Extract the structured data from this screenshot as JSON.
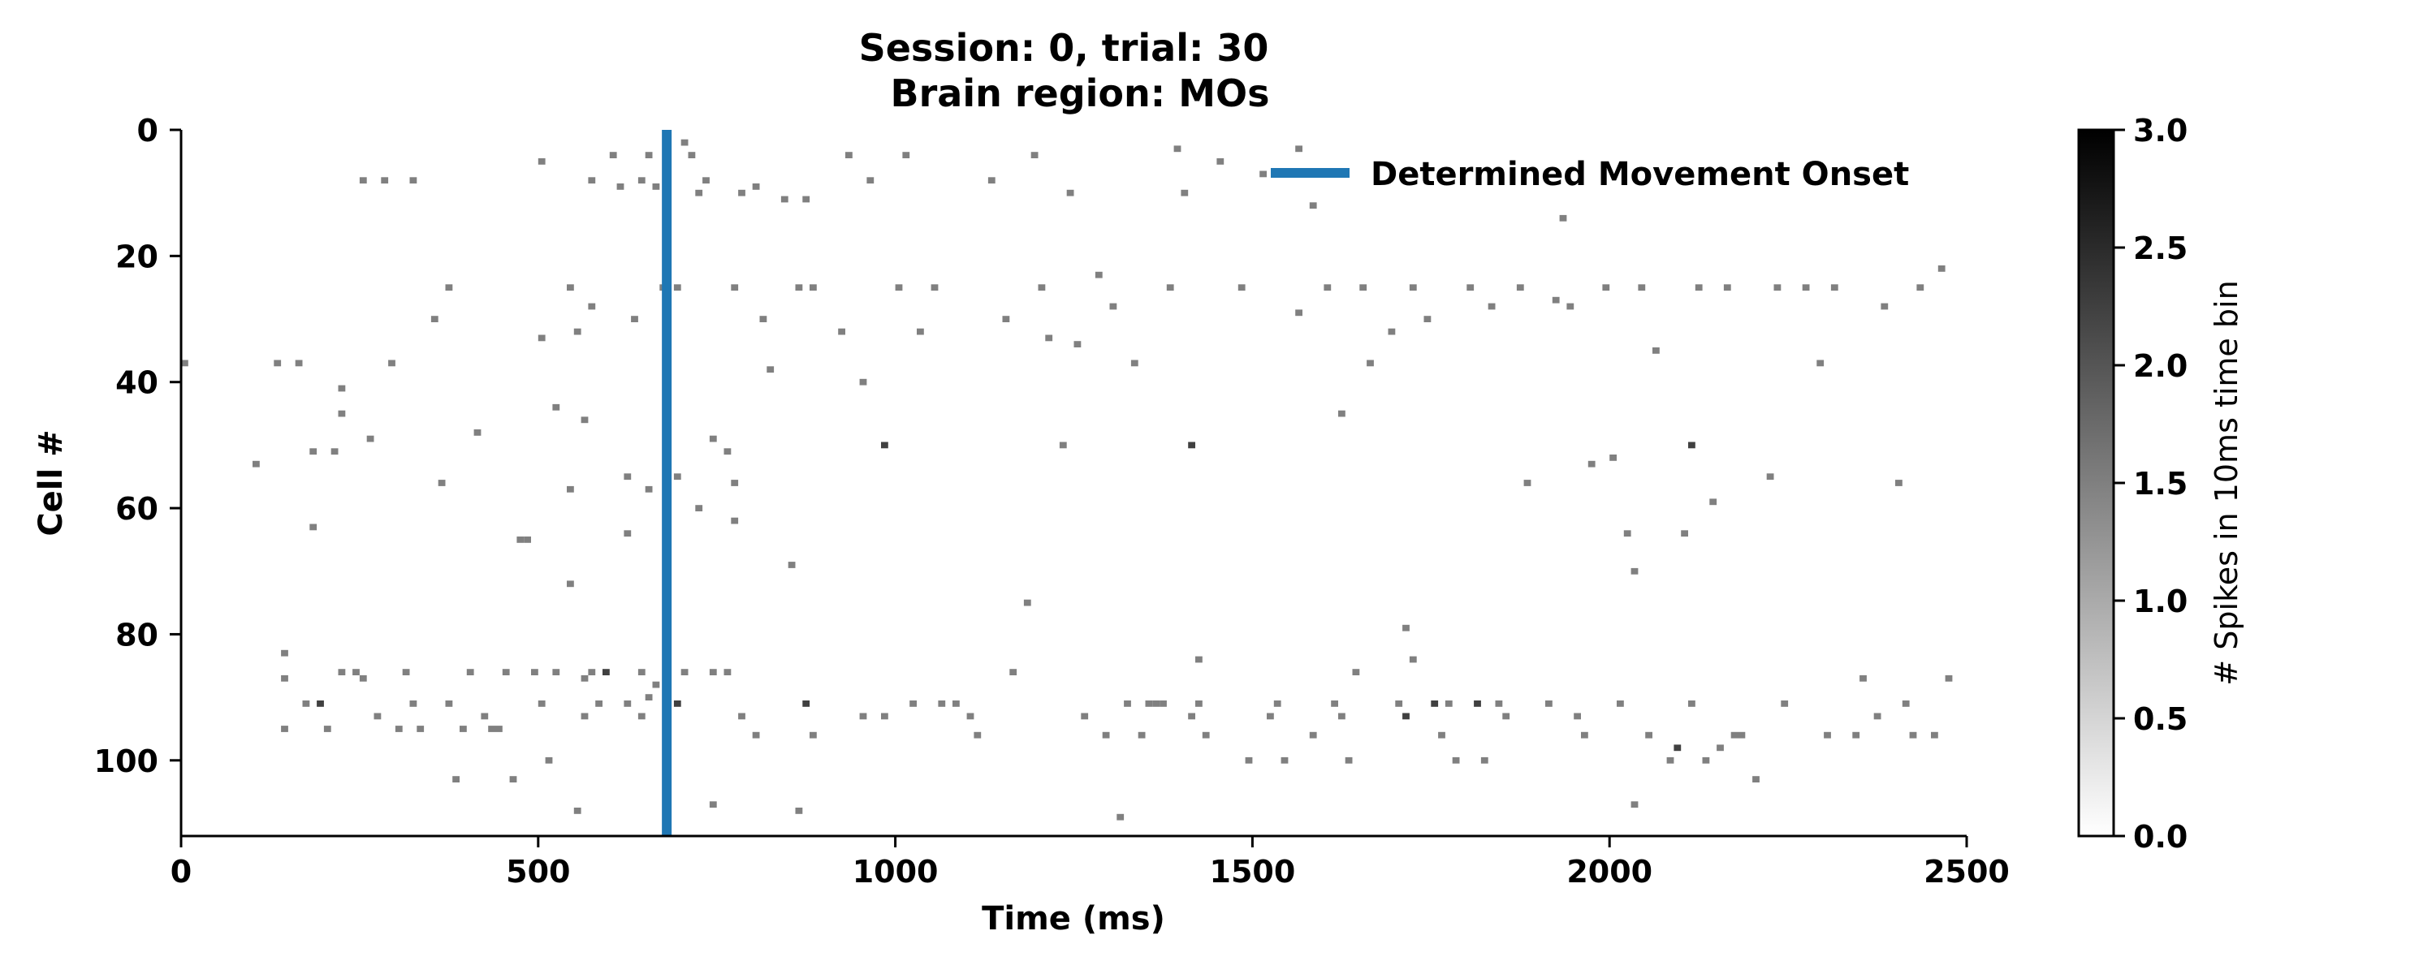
{
  "chart_data": {
    "type": "heatmap",
    "title_line1": "Session: 0, trial: 30",
    "title_line2": "Brain region: MOs",
    "xlabel": "Time (ms)",
    "ylabel": "Cell #",
    "xlim": [
      0,
      2500
    ],
    "ylim": [
      112,
      0
    ],
    "bin_ms": 10,
    "x_ticks": [
      0,
      500,
      1000,
      1500,
      2000,
      2500
    ],
    "x_tick_labels": [
      "0",
      "500",
      "1000",
      "1500",
      "2000",
      "2500"
    ],
    "y_ticks": [
      0,
      20,
      40,
      60,
      80,
      100
    ],
    "y_tick_labels": [
      "0",
      "20",
      "40",
      "60",
      "80",
      "100"
    ],
    "colorbar": {
      "label": "# Spikes in 10ms time bin",
      "range": [
        0,
        3
      ],
      "ticks": [
        0,
        0.5,
        1,
        1.5,
        2,
        2.5,
        3
      ],
      "tick_labels": [
        "0.0",
        "0.5",
        "1.0",
        "1.5",
        "2.0",
        "2.5",
        "3.0"
      ],
      "cmap": "Greys"
    },
    "movement_onset_ms": 680,
    "movement_line_color": "#1f77b4",
    "legend": {
      "label": "Determined Movement Onset",
      "position": "top-right"
    },
    "grid": false,
    "spikes": [
      [
        0,
        37,
        1
      ],
      [
        100,
        53,
        1
      ],
      [
        130,
        37,
        1
      ],
      [
        140,
        83,
        1
      ],
      [
        140,
        87,
        1
      ],
      [
        140,
        95,
        1
      ],
      [
        160,
        37,
        1
      ],
      [
        170,
        91,
        1
      ],
      [
        180,
        51,
        1
      ],
      [
        180,
        63,
        1
      ],
      [
        190,
        91,
        2
      ],
      [
        200,
        95,
        1
      ],
      [
        210,
        51,
        1
      ],
      [
        220,
        41,
        1
      ],
      [
        220,
        45,
        1
      ],
      [
        220,
        86,
        1
      ],
      [
        240,
        86,
        1
      ],
      [
        250,
        8,
        1
      ],
      [
        250,
        87,
        1
      ],
      [
        260,
        49,
        1
      ],
      [
        270,
        93,
        1
      ],
      [
        280,
        8,
        1
      ],
      [
        290,
        37,
        1
      ],
      [
        300,
        95,
        1
      ],
      [
        310,
        86,
        1
      ],
      [
        320,
        8,
        1
      ],
      [
        320,
        91,
        1
      ],
      [
        330,
        95,
        1
      ],
      [
        350,
        30,
        1
      ],
      [
        360,
        56,
        1
      ],
      [
        370,
        25,
        1
      ],
      [
        370,
        91,
        1
      ],
      [
        380,
        103,
        1
      ],
      [
        390,
        95,
        1
      ],
      [
        400,
        86,
        1
      ],
      [
        410,
        48,
        1
      ],
      [
        420,
        93,
        1
      ],
      [
        430,
        95,
        1
      ],
      [
        440,
        95,
        1
      ],
      [
        450,
        86,
        1
      ],
      [
        460,
        103,
        1
      ],
      [
        470,
        65,
        1
      ],
      [
        480,
        65,
        1
      ],
      [
        490,
        86,
        1
      ],
      [
        500,
        5,
        1
      ],
      [
        500,
        33,
        1
      ],
      [
        500,
        91,
        1
      ],
      [
        510,
        100,
        1
      ],
      [
        520,
        44,
        1
      ],
      [
        520,
        86,
        1
      ],
      [
        540,
        25,
        1
      ],
      [
        540,
        57,
        1
      ],
      [
        540,
        72,
        1
      ],
      [
        550,
        32,
        1
      ],
      [
        550,
        108,
        1
      ],
      [
        560,
        46,
        1
      ],
      [
        560,
        87,
        1
      ],
      [
        560,
        93,
        1
      ],
      [
        570,
        8,
        1
      ],
      [
        570,
        28,
        1
      ],
      [
        570,
        86,
        1
      ],
      [
        580,
        91,
        1
      ],
      [
        590,
        86,
        2
      ],
      [
        600,
        4,
        1
      ],
      [
        610,
        9,
        1
      ],
      [
        620,
        55,
        1
      ],
      [
        620,
        64,
        1
      ],
      [
        620,
        91,
        1
      ],
      [
        630,
        30,
        1
      ],
      [
        640,
        8,
        1
      ],
      [
        640,
        86,
        1
      ],
      [
        640,
        93,
        1
      ],
      [
        650,
        4,
        1
      ],
      [
        650,
        57,
        1
      ],
      [
        650,
        90,
        1
      ],
      [
        660,
        9,
        1
      ],
      [
        660,
        88,
        1
      ],
      [
        670,
        25,
        1
      ],
      [
        690,
        25,
        1
      ],
      [
        690,
        55,
        1
      ],
      [
        690,
        91,
        2
      ],
      [
        700,
        2,
        1
      ],
      [
        700,
        86,
        1
      ],
      [
        710,
        4,
        1
      ],
      [
        720,
        10,
        1
      ],
      [
        720,
        60,
        1
      ],
      [
        730,
        8,
        1
      ],
      [
        740,
        49,
        1
      ],
      [
        740,
        86,
        1
      ],
      [
        740,
        107,
        1
      ],
      [
        760,
        51,
        1
      ],
      [
        760,
        86,
        1
      ],
      [
        770,
        25,
        1
      ],
      [
        770,
        56,
        1
      ],
      [
        770,
        62,
        1
      ],
      [
        780,
        10,
        1
      ],
      [
        780,
        93,
        1
      ],
      [
        800,
        9,
        1
      ],
      [
        800,
        96,
        1
      ],
      [
        810,
        30,
        1
      ],
      [
        820,
        38,
        1
      ],
      [
        840,
        11,
        1
      ],
      [
        850,
        69,
        1
      ],
      [
        860,
        25,
        1
      ],
      [
        860,
        108,
        1
      ],
      [
        870,
        11,
        1
      ],
      [
        870,
        91,
        2
      ],
      [
        880,
        25,
        1
      ],
      [
        880,
        96,
        1
      ],
      [
        920,
        32,
        1
      ],
      [
        930,
        4,
        1
      ],
      [
        950,
        40,
        1
      ],
      [
        950,
        93,
        1
      ],
      [
        960,
        8,
        1
      ],
      [
        980,
        50,
        2
      ],
      [
        980,
        93,
        1
      ],
      [
        1000,
        25,
        1
      ],
      [
        1010,
        4,
        1
      ],
      [
        1020,
        91,
        1
      ],
      [
        1030,
        32,
        1
      ],
      [
        1050,
        25,
        1
      ],
      [
        1060,
        91,
        1
      ],
      [
        1080,
        91,
        1
      ],
      [
        1100,
        93,
        1
      ],
      [
        1110,
        96,
        1
      ],
      [
        1130,
        8,
        1
      ],
      [
        1150,
        30,
        1
      ],
      [
        1160,
        86,
        1
      ],
      [
        1180,
        75,
        1
      ],
      [
        1190,
        4,
        1
      ],
      [
        1200,
        25,
        1
      ],
      [
        1210,
        33,
        1
      ],
      [
        1230,
        50,
        1
      ],
      [
        1240,
        10,
        1
      ],
      [
        1250,
        34,
        1
      ],
      [
        1260,
        93,
        1
      ],
      [
        1280,
        23,
        1
      ],
      [
        1290,
        96,
        1
      ],
      [
        1300,
        28,
        1
      ],
      [
        1310,
        109,
        1
      ],
      [
        1320,
        91,
        1
      ],
      [
        1330,
        37,
        1
      ],
      [
        1340,
        96,
        1
      ],
      [
        1350,
        91,
        1
      ],
      [
        1360,
        91,
        1
      ],
      [
        1370,
        91,
        1
      ],
      [
        1380,
        25,
        1
      ],
      [
        1390,
        3,
        1
      ],
      [
        1400,
        10,
        1
      ],
      [
        1410,
        50,
        2
      ],
      [
        1410,
        93,
        1
      ],
      [
        1420,
        84,
        1
      ],
      [
        1420,
        91,
        1
      ],
      [
        1430,
        96,
        1
      ],
      [
        1450,
        5,
        1
      ],
      [
        1480,
        25,
        1
      ],
      [
        1490,
        100,
        1
      ],
      [
        1510,
        7,
        1
      ],
      [
        1520,
        93,
        1
      ],
      [
        1530,
        91,
        1
      ],
      [
        1540,
        100,
        1
      ],
      [
        1560,
        3,
        1
      ],
      [
        1560,
        29,
        1
      ],
      [
        1580,
        12,
        1
      ],
      [
        1580,
        96,
        1
      ],
      [
        1600,
        25,
        1
      ],
      [
        1610,
        91,
        1
      ],
      [
        1620,
        45,
        1
      ],
      [
        1620,
        93,
        1
      ],
      [
        1630,
        100,
        1
      ],
      [
        1640,
        86,
        1
      ],
      [
        1650,
        25,
        1
      ],
      [
        1660,
        37,
        1
      ],
      [
        1690,
        32,
        1
      ],
      [
        1700,
        91,
        1
      ],
      [
        1710,
        79,
        1
      ],
      [
        1710,
        93,
        2
      ],
      [
        1720,
        25,
        1
      ],
      [
        1720,
        84,
        1
      ],
      [
        1740,
        30,
        1
      ],
      [
        1750,
        91,
        2
      ],
      [
        1760,
        96,
        1
      ],
      [
        1770,
        91,
        1
      ],
      [
        1780,
        100,
        1
      ],
      [
        1800,
        25,
        1
      ],
      [
        1810,
        91,
        2
      ],
      [
        1820,
        100,
        1
      ],
      [
        1830,
        28,
        1
      ],
      [
        1840,
        91,
        1
      ],
      [
        1850,
        93,
        1
      ],
      [
        1870,
        25,
        1
      ],
      [
        1880,
        56,
        1
      ],
      [
        1910,
        91,
        1
      ],
      [
        1920,
        27,
        1
      ],
      [
        1930,
        14,
        1
      ],
      [
        1940,
        28,
        1
      ],
      [
        1950,
        93,
        1
      ],
      [
        1960,
        96,
        1
      ],
      [
        1970,
        53,
        1
      ],
      [
        1990,
        25,
        1
      ],
      [
        2000,
        52,
        1
      ],
      [
        2010,
        91,
        1
      ],
      [
        2020,
        64,
        1
      ],
      [
        2030,
        70,
        1
      ],
      [
        2030,
        107,
        1
      ],
      [
        2040,
        25,
        1
      ],
      [
        2050,
        96,
        1
      ],
      [
        2060,
        35,
        1
      ],
      [
        2080,
        100,
        1
      ],
      [
        2090,
        98,
        2
      ],
      [
        2100,
        64,
        1
      ],
      [
        2110,
        50,
        2
      ],
      [
        2110,
        91,
        1
      ],
      [
        2120,
        25,
        1
      ],
      [
        2130,
        100,
        1
      ],
      [
        2140,
        59,
        1
      ],
      [
        2150,
        98,
        1
      ],
      [
        2160,
        25,
        1
      ],
      [
        2170,
        96,
        1
      ],
      [
        2180,
        96,
        1
      ],
      [
        2200,
        103,
        1
      ],
      [
        2220,
        55,
        1
      ],
      [
        2230,
        25,
        1
      ],
      [
        2240,
        91,
        1
      ],
      [
        2270,
        25,
        1
      ],
      [
        2290,
        37,
        1
      ],
      [
        2300,
        96,
        1
      ],
      [
        2310,
        25,
        1
      ],
      [
        2340,
        96,
        1
      ],
      [
        2350,
        87,
        1
      ],
      [
        2370,
        93,
        1
      ],
      [
        2380,
        28,
        1
      ],
      [
        2400,
        56,
        1
      ],
      [
        2410,
        91,
        1
      ],
      [
        2420,
        96,
        1
      ],
      [
        2430,
        25,
        1
      ],
      [
        2450,
        96,
        1
      ],
      [
        2460,
        22,
        1
      ],
      [
        2470,
        87,
        1
      ]
    ]
  }
}
